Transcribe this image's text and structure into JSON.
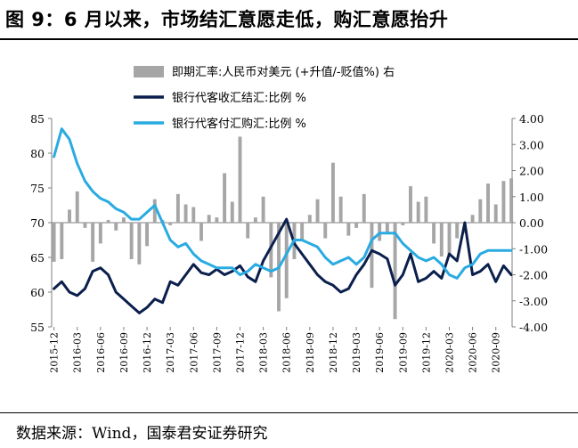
{
  "header": {
    "title": "图 9：6 月以来，市场结汇意愿走低，购汇意愿抬升"
  },
  "footer": {
    "source": "数据来源：Wind，国泰君安证券研究"
  },
  "colors": {
    "bars": "#a6a6a6",
    "settle_line": "#0b1f4d",
    "purchase_line": "#29abe2",
    "axis": "#7f7f7f",
    "background": "#ffffff"
  },
  "chart_data": {
    "type": "bar+line",
    "title": "",
    "legend_position": "top-center",
    "legend": [
      "即期汇率:人民币对美元 (+升值/-贬值%) 右",
      "银行代客收汇结汇:比例 %",
      "银行代客付汇购汇:比例 %"
    ],
    "left_axis": {
      "min": 55,
      "max": 85,
      "ticks": [
        "85",
        "80",
        "75",
        "70",
        "65",
        "60",
        "55"
      ]
    },
    "right_axis": {
      "min": -4,
      "max": 4,
      "ticks": [
        "4.00",
        "3.00",
        "2.00",
        "1.00",
        "0.00",
        "-1.00",
        "-2.00",
        "-3.00",
        "-4.00"
      ]
    },
    "x_tick_labels": [
      "2015-12",
      "2016-03",
      "2016-06",
      "2016-09",
      "2016-12",
      "2017-03",
      "2017-06",
      "2017-09",
      "2017-12",
      "2018-03",
      "2018-06",
      "2018-09",
      "2018-12",
      "2019-03",
      "2019-06",
      "2019-09",
      "2019-12",
      "2020-03",
      "2020-06",
      "2020-09"
    ],
    "months": [
      "2015-12",
      "2016-01",
      "2016-02",
      "2016-03",
      "2016-04",
      "2016-05",
      "2016-06",
      "2016-07",
      "2016-08",
      "2016-09",
      "2016-10",
      "2016-11",
      "2016-12",
      "2017-01",
      "2017-02",
      "2017-03",
      "2017-04",
      "2017-05",
      "2017-06",
      "2017-07",
      "2017-08",
      "2017-09",
      "2017-10",
      "2017-11",
      "2017-12",
      "2018-01",
      "2018-02",
      "2018-03",
      "2018-04",
      "2018-05",
      "2018-06",
      "2018-07",
      "2018-08",
      "2018-09",
      "2018-10",
      "2018-11",
      "2018-12",
      "2019-01",
      "2019-02",
      "2019-03",
      "2019-04",
      "2019-05",
      "2019-06",
      "2019-07",
      "2019-08",
      "2019-09",
      "2019-10",
      "2019-11",
      "2019-12",
      "2020-01",
      "2020-02",
      "2020-03",
      "2020-04",
      "2020-05",
      "2020-06",
      "2020-07",
      "2020-08",
      "2020-09",
      "2020-10",
      "2020-11"
    ],
    "series": [
      {
        "name": "即期汇率:人民币对美元 (+升值/-贬值%) 右",
        "type": "bar",
        "axis": "right",
        "values": [
          -1.5,
          -1.4,
          0.5,
          1.2,
          -0.2,
          -1.5,
          -0.8,
          0.1,
          -0.3,
          0.2,
          -1.4,
          -1.6,
          -0.9,
          0.9,
          0.1,
          -0.1,
          1.1,
          0.7,
          0.6,
          -0.7,
          0.3,
          0.2,
          1.9,
          0.8,
          3.3,
          -0.6,
          0.2,
          1.0,
          -2.1,
          -3.4,
          -2.9,
          -1.4,
          -0.7,
          0.3,
          0.9,
          -0.6,
          2.3,
          1.0,
          -0.5,
          -0.2,
          1.1,
          -2.5,
          -0.7,
          -0.4,
          -3.7,
          -0.1,
          1.4,
          0.8,
          1.0,
          -0.8,
          -1.3,
          -1.3,
          -0.6,
          -0.4,
          0.3,
          0.9,
          1.5,
          0.7,
          1.6,
          1.7
        ]
      },
      {
        "name": "银行代客收汇结汇:比例 %",
        "type": "line",
        "axis": "left",
        "values": [
          60.5,
          61.5,
          60.0,
          59.5,
          60.5,
          63.0,
          63.5,
          62.5,
          60.0,
          59.0,
          58.0,
          57.0,
          57.8,
          59.0,
          58.5,
          61.5,
          61.0,
          62.5,
          64.0,
          62.8,
          62.5,
          63.3,
          62.5,
          63.0,
          63.8,
          62.2,
          61.5,
          64.5,
          66.5,
          68.5,
          70.5,
          67.0,
          65.5,
          64.0,
          62.5,
          61.5,
          61.0,
          60.0,
          60.5,
          62.5,
          64.0,
          66.0,
          65.5,
          64.8,
          61.0,
          62.5,
          65.5,
          61.5,
          62.0,
          63.0,
          62.0,
          65.5,
          64.5,
          70.0,
          62.5,
          63.0,
          64.0,
          61.5,
          63.8,
          62.5
        ]
      },
      {
        "name": "银行代客付汇购汇:比例 %",
        "type": "line",
        "axis": "left",
        "values": [
          79.5,
          83.5,
          82.0,
          78.5,
          76.0,
          74.5,
          73.5,
          73.0,
          72.0,
          71.5,
          70.5,
          70.5,
          71.5,
          72.5,
          70.0,
          67.5,
          66.5,
          67.0,
          65.5,
          64.5,
          64.0,
          63.5,
          63.5,
          63.5,
          62.5,
          63.0,
          64.0,
          63.5,
          63.0,
          63.5,
          65.5,
          67.5,
          67.5,
          67.0,
          66.5,
          65.0,
          64.0,
          64.5,
          65.0,
          64.0,
          65.0,
          67.5,
          68.5,
          68.5,
          68.5,
          67.0,
          66.0,
          65.0,
          64.5,
          65.0,
          64.0,
          62.5,
          62.0,
          63.5,
          64.0,
          65.5,
          66.0,
          66.0,
          66.0,
          66.0
        ]
      }
    ]
  }
}
